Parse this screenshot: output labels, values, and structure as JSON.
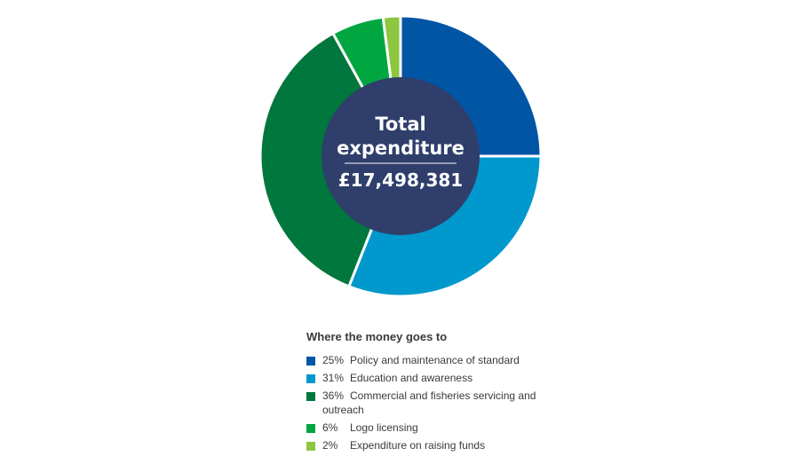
{
  "chart_data": {
    "type": "pie",
    "variant": "donut",
    "center": {
      "title_lines": [
        "Total",
        "expenditure"
      ],
      "value": "£17,498,381"
    },
    "legend_title": "Where the money goes to",
    "legend_placement": "bottom",
    "slices": [
      {
        "pct_label": "25%",
        "value": 25,
        "label": "Policy and maintenance of standard",
        "color": "#0055a5"
      },
      {
        "pct_label": "31%",
        "value": 31,
        "label": "Education and awareness",
        "color": "#0098cd"
      },
      {
        "pct_label": "36%",
        "value": 36,
        "label": "Commercial and fisheries servicing and outreach",
        "color": "#00773c"
      },
      {
        "pct_label": "6%",
        "value": 6,
        "label": "Logo licensing",
        "color": "#00a640"
      },
      {
        "pct_label": "2%",
        "value": 2,
        "label": "Expenditure on raising funds",
        "color": "#8dc63f"
      }
    ],
    "center_color": "#2f3e6b"
  }
}
